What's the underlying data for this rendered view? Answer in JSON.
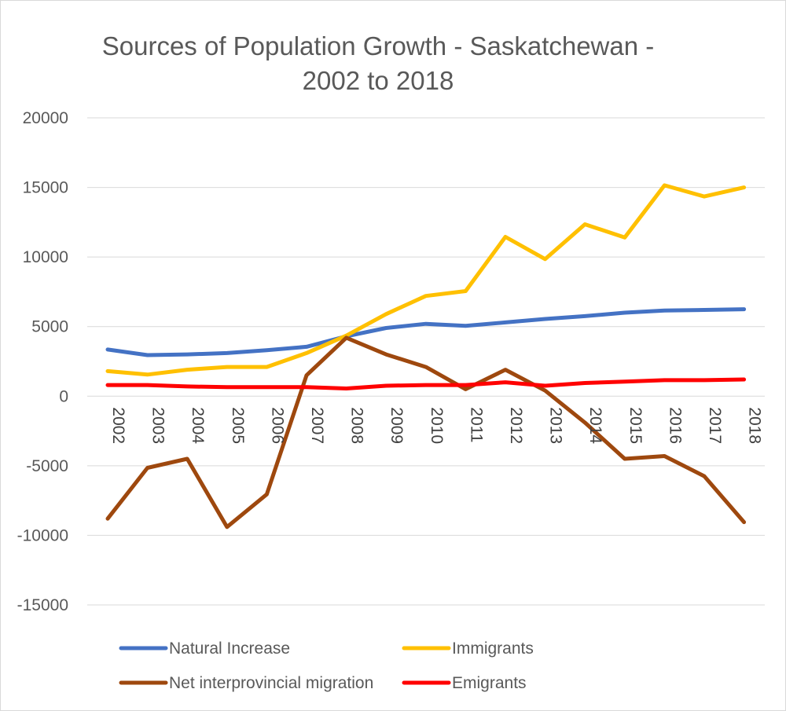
{
  "chart_data": {
    "type": "line",
    "title_lines": [
      "Sources of Population Growth - Saskatchewan -",
      "2002 to 2018"
    ],
    "xlabel": "",
    "ylabel": "",
    "ylim": [
      -15000,
      20000
    ],
    "yticks": [
      20000,
      15000,
      10000,
      5000,
      0,
      -5000,
      -10000,
      -15000
    ],
    "ytick_labels": [
      "20000",
      "15000",
      "10000",
      "5000",
      "0",
      "-5000",
      "-10000",
      "-15000"
    ],
    "grid": true,
    "legend_position": "bottom",
    "categories": [
      "2002",
      "2003",
      "2004",
      "2005",
      "2006",
      "2007",
      "2008",
      "2009",
      "2010",
      "2011",
      "2012",
      "2013",
      "2014",
      "2015",
      "2016",
      "2017",
      "2018"
    ],
    "series": [
      {
        "name": "Natural Increase",
        "color": "#4472c4",
        "values": [
          3350,
          2950,
          3000,
          3100,
          3300,
          3550,
          4300,
          4900,
          5200,
          5050,
          5300,
          5550,
          5750,
          6000,
          6150,
          6200,
          6250
        ]
      },
      {
        "name": "Immigrants",
        "color": "#ffc000",
        "values": [
          1800,
          1550,
          1900,
          2100,
          2100,
          3100,
          4350,
          5900,
          7200,
          7550,
          11450,
          9850,
          12350,
          11400,
          15150,
          14350,
          15000
        ]
      },
      {
        "name": "Net interprovincial migration",
        "color": "#9e480e",
        "values": [
          -8800,
          -5150,
          -4500,
          -9400,
          -7050,
          1500,
          4200,
          3000,
          2100,
          500,
          1900,
          400,
          -1900,
          -4500,
          -4300,
          -5750,
          -9050
        ]
      },
      {
        "name": "Emigrants",
        "color": "#ff0000",
        "values": [
          800,
          800,
          700,
          650,
          650,
          650,
          550,
          750,
          800,
          800,
          1000,
          750,
          950,
          1050,
          1150,
          1150,
          1200
        ]
      }
    ]
  }
}
